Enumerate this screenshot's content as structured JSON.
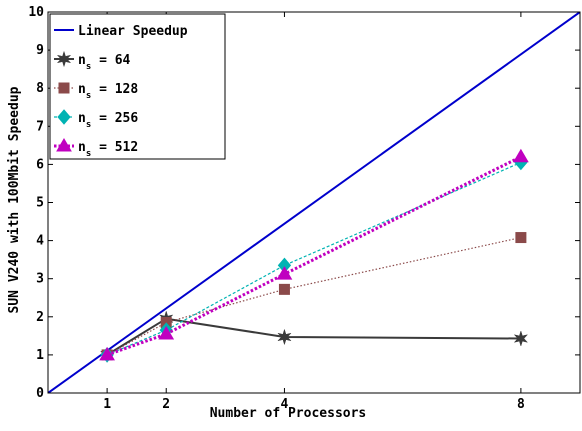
{
  "chart_data": {
    "type": "line",
    "xlabel": "Number of Processors",
    "ylabel": "SUN V240 with 100Mbit Speedup",
    "xlim": [
      0,
      9
    ],
    "ylim": [
      0,
      10
    ],
    "x_ticks": [
      1,
      2,
      4,
      8
    ],
    "y_ticks": [
      0,
      1,
      2,
      3,
      4,
      5,
      6,
      7,
      8,
      9,
      10
    ],
    "grid": false,
    "legend_position": "top-left",
    "series": [
      {
        "name": "Linear Speedup",
        "legend_main": "Linear Speedup",
        "legend_sub": "",
        "legend_value": "",
        "color": "#0000cc",
        "marker": "none",
        "line": "solid",
        "x": [
          0,
          9
        ],
        "y": [
          0,
          10
        ]
      },
      {
        "name": "n_s = 64",
        "legend_main": "n",
        "legend_sub": "s",
        "legend_value": " = 64",
        "color": "#3a3a3a",
        "marker": "star",
        "line": "solid",
        "x": [
          1,
          2,
          4,
          8
        ],
        "y": [
          1.0,
          1.95,
          1.47,
          1.43
        ]
      },
      {
        "name": "n_s = 128",
        "legend_main": "n",
        "legend_sub": "s",
        "legend_value": " = 128",
        "color": "#8b4a4a",
        "marker": "square",
        "line": "dotted",
        "x": [
          1,
          2,
          4,
          8
        ],
        "y": [
          1.0,
          1.85,
          2.72,
          4.08
        ]
      },
      {
        "name": "n_s = 256",
        "legend_main": "n",
        "legend_sub": "s",
        "legend_value": " = 256",
        "color": "#00b3b3",
        "marker": "diamond",
        "line": "dashed",
        "x": [
          1,
          2,
          4,
          8
        ],
        "y": [
          1.0,
          1.65,
          3.35,
          6.05
        ]
      },
      {
        "name": "n_s = 512",
        "legend_main": "n",
        "legend_sub": "s",
        "legend_value": " = 512",
        "color": "#c000c0",
        "marker": "triangle",
        "line": "dotted-thick",
        "x": [
          1,
          2,
          4,
          8
        ],
        "y": [
          1.0,
          1.55,
          3.12,
          6.2
        ]
      }
    ]
  }
}
